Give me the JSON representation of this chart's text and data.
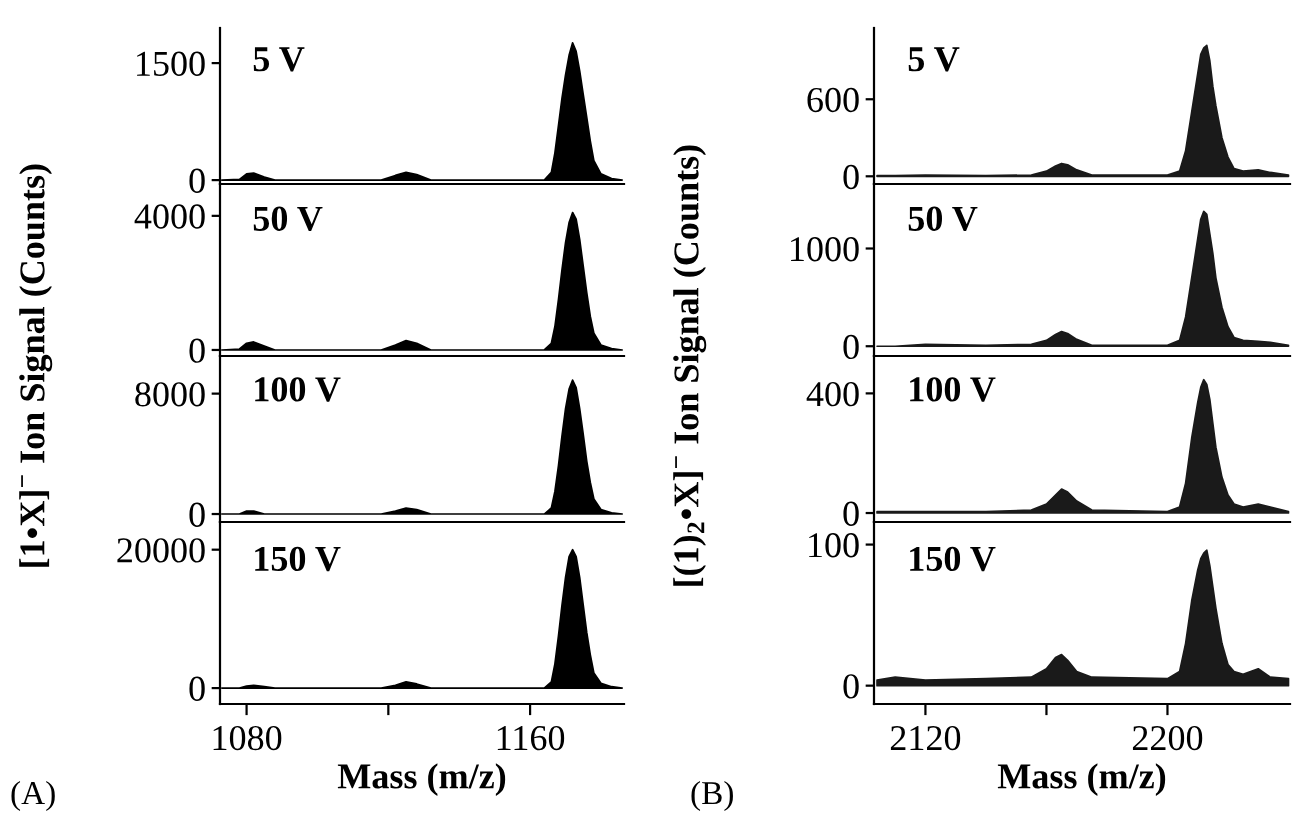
{
  "chart_data": [
    {
      "type": "area",
      "color": "#000000",
      "x": [
        1073,
        1078,
        1080,
        1082,
        1085,
        1088,
        1118,
        1122,
        1125,
        1128,
        1132,
        1164,
        1166,
        1167,
        1168,
        1169,
        1170,
        1171,
        1172,
        1173,
        1174,
        1175,
        1176,
        1177,
        1178,
        1180,
        1183,
        1186
      ],
      "values": [
        0,
        10,
        80,
        90,
        40,
        0,
        0,
        60,
        100,
        70,
        0,
        0,
        100,
        350,
        700,
        1050,
        1350,
        1600,
        1760,
        1650,
        1400,
        1100,
        800,
        500,
        250,
        80,
        20,
        0
      ],
      "xlim": [
        1072.5,
        1186.5
      ],
      "ylim": [
        -50,
        1950
      ],
      "yticks": [
        0,
        1500
      ],
      "tick_labels": "y",
      "annotations": [
        "5 V"
      ],
      "ylabel": "[1•X]$^{−}$ Ion Signal (Counts)"
    },
    {
      "type": "area",
      "color": "#000000",
      "x": [
        1073,
        1078,
        1080,
        1082,
        1085,
        1088,
        1118,
        1122,
        1125,
        1128,
        1132,
        1164,
        1166,
        1167,
        1168,
        1169,
        1170,
        1171,
        1172,
        1173,
        1174,
        1175,
        1176,
        1177,
        1178,
        1180,
        1183,
        1186
      ],
      "values": [
        0,
        30,
        200,
        240,
        120,
        0,
        0,
        150,
        280,
        200,
        0,
        0,
        200,
        700,
        1500,
        2400,
        3200,
        3800,
        4100,
        3900,
        3300,
        2500,
        1700,
        1000,
        500,
        150,
        40,
        0
      ],
      "xlim": [
        1072.5,
        1186.5
      ],
      "ylim": [
        -180,
        4950
      ],
      "yticks": [
        0,
        4000
      ],
      "tick_labels": "y",
      "annotations": [
        "50 V"
      ]
    },
    {
      "type": "area",
      "color": "#000000",
      "x": [
        1073,
        1078,
        1080,
        1082,
        1085,
        1088,
        1118,
        1122,
        1125,
        1128,
        1132,
        1164,
        1166,
        1167,
        1168,
        1169,
        1170,
        1171,
        1172,
        1173,
        1174,
        1175,
        1176,
        1177,
        1178,
        1180,
        1183,
        1186
      ],
      "values": [
        0,
        0,
        200,
        200,
        0,
        0,
        0,
        200,
        400,
        300,
        0,
        0,
        400,
        1500,
        3200,
        5200,
        7000,
        8300,
        8900,
        8400,
        7000,
        5300,
        3500,
        2100,
        1000,
        300,
        80,
        0
      ],
      "xlim": [
        1072.5,
        1186.5
      ],
      "ylim": [
        -530,
        10500
      ],
      "yticks": [
        0,
        8000
      ],
      "tick_labels": "y",
      "annotations": [
        "100 V"
      ]
    },
    {
      "type": "area",
      "color": "#000000",
      "x": [
        1073,
        1078,
        1080,
        1082,
        1085,
        1088,
        1118,
        1122,
        1125,
        1128,
        1132,
        1164,
        1166,
        1167,
        1168,
        1169,
        1170,
        1171,
        1172,
        1173,
        1174,
        1175,
        1176,
        1177,
        1178,
        1180,
        1183,
        1186
      ],
      "values": [
        0,
        0,
        300,
        400,
        200,
        0,
        0,
        400,
        900,
        600,
        0,
        0,
        900,
        3500,
        7500,
        12000,
        16000,
        19000,
        20000,
        19000,
        16000,
        12000,
        8000,
        4800,
        2200,
        700,
        200,
        0
      ],
      "xlim": [
        1072.5,
        1186.5
      ],
      "ylim": [
        -2300,
        24000
      ],
      "yticks": [
        0,
        20000
      ],
      "xticks": [
        1080,
        {
          "value": 1120,
          "label": null
        },
        1160
      ],
      "xlabel": "Mass (m/z)",
      "annotations": [
        "150 V",
        "(A)"
      ]
    },
    {
      "type": "area",
      "color": "#1a1a1a",
      "x": [
        2104,
        2110,
        2120,
        2140,
        2155,
        2160,
        2163,
        2165,
        2167,
        2170,
        2175,
        2200,
        2204,
        2206,
        2208,
        2210,
        2211,
        2212,
        2213,
        2214,
        2215,
        2216,
        2218,
        2220,
        2222,
        2225,
        2230,
        2234,
        2240
      ],
      "values": [
        5,
        5,
        10,
        5,
        10,
        40,
        80,
        100,
        90,
        50,
        10,
        10,
        40,
        200,
        500,
        800,
        950,
        1000,
        1020,
        900,
        700,
        550,
        300,
        150,
        60,
        40,
        50,
        30,
        10
      ],
      "xlim": [
        2103,
        2240.5
      ],
      "ylim": [
        -60,
        1155
      ],
      "yticks": [
        0,
        600
      ],
      "tick_labels": "y",
      "annotations": [
        "5 V"
      ],
      "ylabel": "[(1)$_{2}$•X]$^{−}$ Ion Signal (Counts)"
    },
    {
      "type": "area",
      "color": "#1a1a1a",
      "x": [
        2104,
        2110,
        2120,
        2140,
        2155,
        2160,
        2163,
        2165,
        2167,
        2170,
        2175,
        2200,
        2204,
        2206,
        2208,
        2210,
        2211,
        2212,
        2213,
        2214,
        2215,
        2216,
        2218,
        2220,
        2222,
        2225,
        2230,
        2234,
        2240
      ],
      "values": [
        0,
        0,
        20,
        10,
        20,
        60,
        120,
        150,
        130,
        70,
        10,
        10,
        60,
        300,
        700,
        1100,
        1300,
        1380,
        1350,
        1150,
        950,
        700,
        400,
        200,
        90,
        60,
        50,
        40,
        10
      ],
      "xlim": [
        2103,
        2240.5
      ],
      "ylim": [
        -100,
        1660
      ],
      "yticks": [
        0,
        1000
      ],
      "tick_labels": "y",
      "annotations": [
        "50 V"
      ]
    },
    {
      "type": "area",
      "color": "#1a1a1a",
      "x": [
        2104,
        2110,
        2120,
        2140,
        2155,
        2160,
        2163,
        2165,
        2167,
        2170,
        2175,
        2200,
        2204,
        2206,
        2208,
        2210,
        2211,
        2212,
        2213,
        2214,
        2215,
        2216,
        2218,
        2220,
        2222,
        2225,
        2230,
        2234,
        2240
      ],
      "values": [
        5,
        5,
        5,
        5,
        10,
        30,
        60,
        80,
        70,
        40,
        10,
        5,
        20,
        100,
        250,
        370,
        420,
        446,
        430,
        380,
        300,
        220,
        120,
        60,
        30,
        20,
        30,
        20,
        5
      ],
      "xlim": [
        2103,
        2240.5
      ],
      "ylim": [
        -30,
        525
      ],
      "yticks": [
        0,
        400
      ],
      "tick_labels": "y",
      "annotations": [
        "100 V"
      ]
    },
    {
      "type": "area",
      "color": "#1a1a1a",
      "x": [
        2104,
        2110,
        2120,
        2140,
        2155,
        2160,
        2163,
        2165,
        2167,
        2170,
        2175,
        2200,
        2204,
        2206,
        2208,
        2210,
        2211,
        2212,
        2213,
        2214,
        2215,
        2216,
        2218,
        2220,
        2222,
        2225,
        2230,
        2234,
        2240
      ],
      "values": [
        4,
        6,
        4,
        5,
        6,
        12,
        20,
        22,
        18,
        10,
        6,
        5,
        10,
        30,
        60,
        82,
        90,
        94,
        96,
        85,
        70,
        55,
        30,
        15,
        10,
        8,
        12,
        6,
        5
      ],
      "xlim": [
        2103,
        2240.5
      ],
      "ylim": [
        -13,
        116
      ],
      "yticks": [
        0,
        100
      ],
      "xticks": [
        2120,
        {
          "value": 2160,
          "label": null
        },
        2200
      ],
      "xlabel": "Mass (m/z)",
      "annotations": [
        "150 V",
        "(B)"
      ]
    }
  ]
}
